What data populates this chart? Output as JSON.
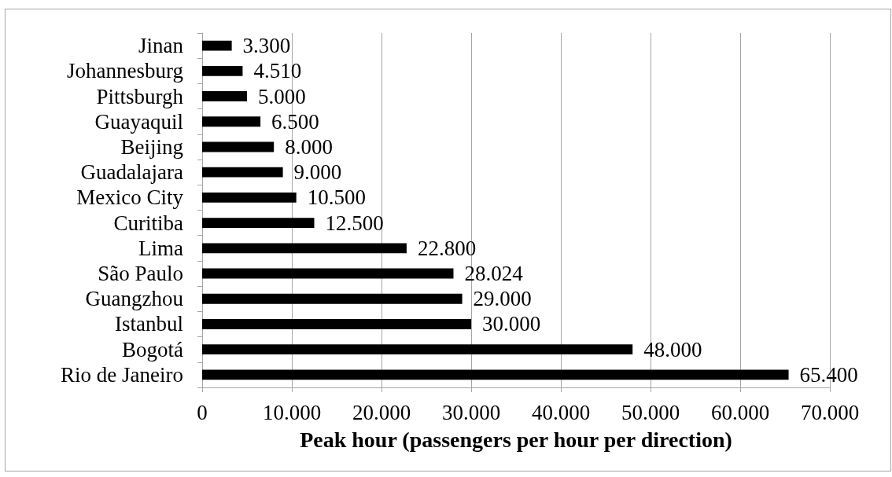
{
  "chart_data": {
    "type": "bar",
    "orientation": "horizontal",
    "xlabel": "Peak hour (passengers per hour per direction)",
    "categories": [
      "Jinan",
      "Johannesburg",
      "Pittsburgh",
      "Guayaquil",
      "Beijing",
      "Guadalajara",
      "Mexico City",
      "Curitiba",
      "Lima",
      "São Paulo",
      "Guangzhou",
      "Istanbul",
      "Bogotá",
      "Rio de Janeiro"
    ],
    "values": [
      3300,
      4510,
      5000,
      6500,
      8000,
      9000,
      10500,
      12500,
      22800,
      28024,
      29000,
      30000,
      48000,
      65400
    ],
    "value_labels": [
      "3.300",
      "4.510",
      "5.000",
      "6.500",
      "8.000",
      "9.000",
      "10.500",
      "12.500",
      "22.800",
      "28.024",
      "29.000",
      "30.000",
      "48.000",
      "65.400"
    ],
    "color": "#000000",
    "xlim": [
      0,
      70000
    ],
    "xticks": [
      0,
      {
        "value": 10000,
        "label": "10.000"
      },
      {
        "value": 20000,
        "label": "20.000"
      },
      {
        "value": 30000,
        "label": "30.000"
      },
      {
        "value": 40000,
        "label": "40.000"
      },
      {
        "value": 50000,
        "label": "50.000"
      },
      {
        "value": 60000,
        "label": "60.000"
      },
      {
        "value": 70000,
        "label": "70.000"
      }
    ],
    "grid": "x"
  }
}
